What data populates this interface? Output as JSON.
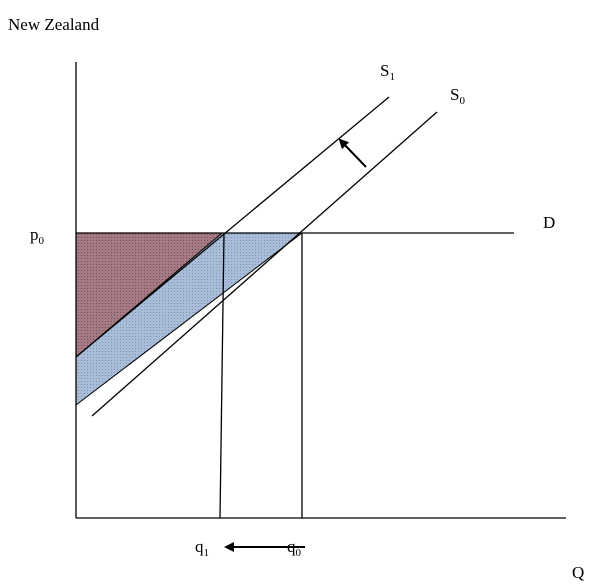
{
  "title": "New Zealand",
  "labels": {
    "s1": {
      "base": "S",
      "sub": "1"
    },
    "s0": {
      "base": "S",
      "sub": "0"
    },
    "p0": {
      "base": "p",
      "sub": "0"
    },
    "d": "D",
    "q1": {
      "base": "q",
      "sub": "1"
    },
    "q0": {
      "base": "q",
      "sub": "0"
    },
    "q": "Q"
  }
}
